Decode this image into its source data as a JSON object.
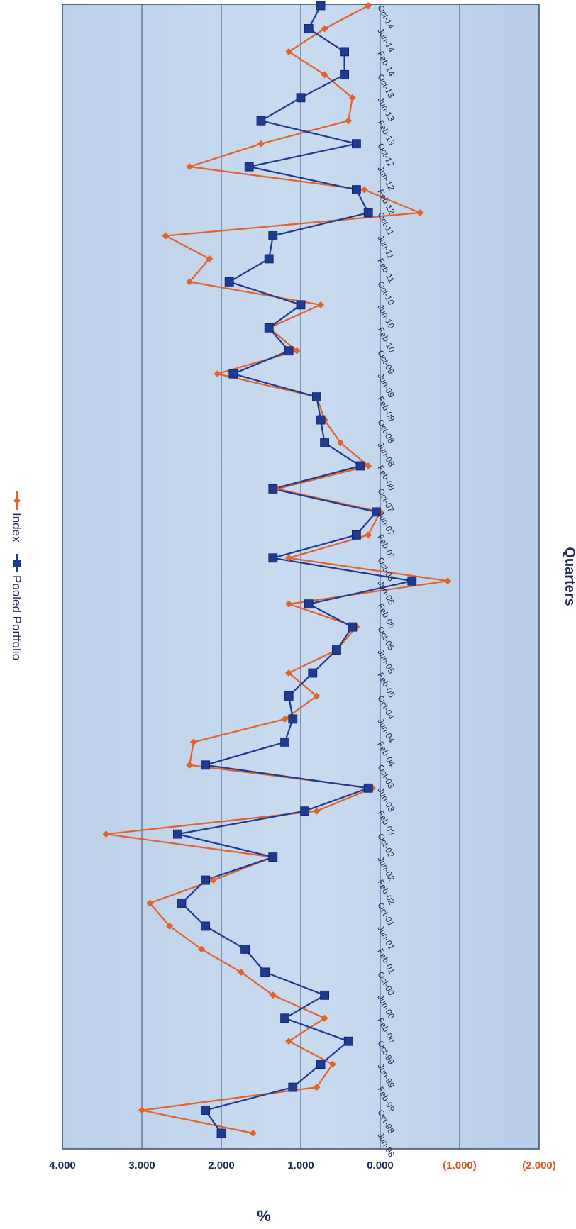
{
  "chart_data": {
    "type": "line",
    "orientation": "rotated-90-clockwise",
    "xlabel": "Quarters",
    "ylabel": "%",
    "ylim": [
      -2,
      4
    ],
    "yticks": [
      4,
      3,
      2,
      1,
      0,
      -1,
      -2
    ],
    "ytick_labels": [
      "4.000",
      "3.000",
      "2.000",
      "1.000",
      "0.000",
      "(1.000)",
      "(2.000)"
    ],
    "ytick_colors": [
      "#1f2a55",
      "#1f2a55",
      "#1f2a55",
      "#1f2a55",
      "#1f2a55",
      "#d9541e",
      "#d9541e"
    ],
    "grid": true,
    "legend": "top",
    "x": [
      "Jun-98",
      "Oct-98",
      "Feb-99",
      "Jun-99",
      "Oct-99",
      "Feb-00",
      "Jun-00",
      "Oct-00",
      "Feb-01",
      "Jun-01",
      "Oct-01",
      "Feb-02",
      "Jun-02",
      "Oct-02",
      "Feb-03",
      "Jun-03",
      "Oct-03",
      "Feb-04",
      "Jun-04",
      "Oct-04",
      "Feb-05",
      "Jun-05",
      "Oct-05",
      "Feb-06",
      "Jun-06",
      "Oct-06",
      "Feb-07",
      "Jun-07",
      "Oct-07",
      "Feb-08",
      "Jun-08",
      "Oct-08",
      "Feb-09",
      "Jun-09",
      "Oct-09",
      "Feb-10",
      "Jun-10",
      "Oct-10",
      "Feb-11",
      "Jun-11",
      "Oct-11",
      "Feb-12",
      "Jun-12",
      "Oct-12",
      "Feb-13",
      "Jun-13",
      "Oct-13",
      "Feb-14",
      "Jun-14",
      "Oct-14"
    ],
    "x_tick_labels": [
      "Jun-98",
      "Oct-98",
      "Feb-99",
      "Jun-99",
      "Oct-99",
      "Feb-00",
      "Jun-00",
      "Oct-00",
      "Feb-01",
      "Jun-01",
      "Oct-01",
      "Feb-02",
      "Jun-02",
      "Oct-02",
      "Feb-03",
      "Jun-03",
      "Oct-03",
      "Feb-04",
      "Jun-04",
      "Oct-04",
      "Feb-05",
      "Jun-05",
      "Oct-05",
      "Feb-06",
      "Jun-06",
      "Oct-06",
      "Feb-07",
      "Jun-07",
      "Oct-07",
      "Feb-08",
      "Jun-08",
      "Oct-08",
      "Feb-09",
      "Jun-09",
      "Oct-09",
      "Feb-10",
      "Jun-10",
      "Oct-10",
      "Feb-11",
      "Jun-11",
      "Oct-11",
      "Feb-12",
      "Jun-12",
      "Oct-12",
      "Feb-13",
      "Jun-13",
      "Oct-13",
      "Feb-14",
      "Jun-14",
      "Oct-14"
    ],
    "series": [
      {
        "name": "Index",
        "color": "#e2622a",
        "marker": "diamond",
        "values_by_point": [
          1.6,
          3.0,
          0.8,
          0.6,
          1.15,
          0.7,
          1.35,
          1.75,
          2.25,
          2.65,
          2.9,
          2.1,
          1.35,
          3.45,
          0.8,
          0.1,
          2.4,
          2.35,
          1.2,
          0.8,
          1.15,
          0.55,
          0.3,
          1.15,
          -0.85,
          1.15,
          0.15,
          0.0,
          1.3,
          0.15,
          0.5,
          0.7,
          0.8,
          2.05,
          1.05,
          1.4,
          0.75,
          2.4,
          2.15,
          2.7,
          -0.5,
          0.2,
          2.4,
          1.5,
          0.4,
          0.35,
          0.7,
          1.15,
          0.7,
          0.15
        ]
      },
      {
        "name": "Pooled Portfolio",
        "color": "#1f3a93",
        "marker": "square",
        "values_by_point": [
          2.0,
          2.2,
          1.1,
          0.75,
          0.4,
          1.2,
          0.7,
          1.45,
          1.7,
          2.2,
          2.5,
          2.2,
          1.35,
          2.55,
          0.95,
          0.15,
          2.2,
          1.2,
          1.1,
          1.15,
          0.85,
          0.55,
          0.35,
          0.9,
          -0.4,
          1.35,
          0.3,
          0.05,
          1.35,
          0.25,
          0.7,
          0.75,
          0.8,
          1.85,
          1.15,
          1.4,
          1.0,
          1.9,
          1.4,
          1.35,
          0.15,
          0.3,
          1.65,
          0.3,
          1.5,
          1.0,
          0.45,
          0.45,
          0.9,
          0.75
        ]
      }
    ]
  }
}
